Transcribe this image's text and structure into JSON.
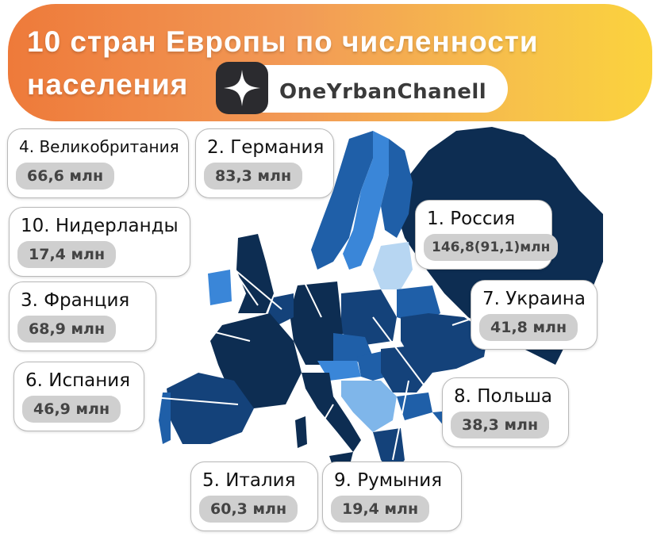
{
  "header": {
    "title_line1": "10 стран Европы по численности",
    "title_line2": "населения",
    "channel_name": "OneYrbanChanell",
    "channel_icon": "zen-star-icon",
    "gradient_start": "#ee7a3a",
    "gradient_end": "#fbd33d"
  },
  "map": {
    "colors": {
      "darkest": "#0d2d52",
      "dark": "#14427a",
      "mid": "#1f5fa8",
      "light": "#3a86d8",
      "lighter": "#7fb6ea",
      "lightest": "#b7d6f2"
    }
  },
  "countries": [
    {
      "rank_name": "4. Великобритания",
      "population": "66,6 млн"
    },
    {
      "rank_name": "2. Германия",
      "population": "83,3 млн"
    },
    {
      "rank_name": "1. Россия",
      "population": "146,8(91,1)млн"
    },
    {
      "rank_name": "10. Нидерланды",
      "population": "17,4 млн"
    },
    {
      "rank_name": "3. Франция",
      "population": "68,9 млн"
    },
    {
      "rank_name": "7. Украина",
      "population": "41,8 млн"
    },
    {
      "rank_name": "6. Испания",
      "population": "46,9 млн"
    },
    {
      "rank_name": "8. Польша",
      "population": "38,3 млн"
    },
    {
      "rank_name": "5. Италия",
      "population": "60,3 млн"
    },
    {
      "rank_name": "9. Румыния",
      "population": "19,4 млн"
    }
  ]
}
